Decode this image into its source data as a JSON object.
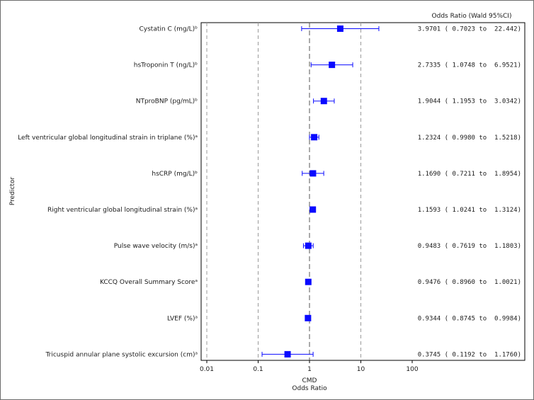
{
  "chart_data": {
    "type": "forest",
    "ylabel": "Predictor",
    "xlabel": "Odds Ratio",
    "x_subtitle": "CMD",
    "table_header": "Odds Ratio (Wald 95%CI)",
    "x_scale": "log",
    "xlim": [
      0.01,
      100
    ],
    "x_ticks": [
      0.01,
      0.1,
      1,
      10,
      100
    ],
    "x_tick_labels": [
      "0.01",
      "0.1",
      "1",
      "10",
      "100"
    ],
    "reference_lines": [
      0.01,
      0.1,
      1,
      10
    ],
    "rows": [
      {
        "label": "Cystatin C (mg/L)ᵇ",
        "or": 3.9701,
        "lo": 0.7023,
        "hi": 22.442,
        "ci_text": "3.9701 ( 0.7023 to  22.442)"
      },
      {
        "label": "hsTroponin T (ng/L)ᵇ",
        "or": 2.7335,
        "lo": 1.0748,
        "hi": 6.9521,
        "ci_text": "2.7335 ( 1.0748 to  6.9521)"
      },
      {
        "label": "NTproBNP (pg/mL)ᵇ",
        "or": 1.9044,
        "lo": 1.1953,
        "hi": 3.0342,
        "ci_text": "1.9044 ( 1.1953 to  3.0342)"
      },
      {
        "label": "Left ventricular global longitudinal strain in triplane (%)ᵃ",
        "or": 1.2324,
        "lo": 0.998,
        "hi": 1.5218,
        "ci_text": "1.2324 ( 0.9980 to  1.5218)"
      },
      {
        "label": "hsCRP (mg/L)ᵇ",
        "or": 1.169,
        "lo": 0.7211,
        "hi": 1.8954,
        "ci_text": "1.1690 ( 0.7211 to  1.8954)"
      },
      {
        "label": "Right ventricular global longitudinal strain (%)ᵃ",
        "or": 1.1593,
        "lo": 1.0241,
        "hi": 1.3124,
        "ci_text": "1.1593 ( 1.0241 to  1.3124)"
      },
      {
        "label": "Pulse wave velocity (m/s)ᵃ",
        "or": 0.9483,
        "lo": 0.7619,
        "hi": 1.1803,
        "ci_text": "0.9483 ( 0.7619 to  1.1803)"
      },
      {
        "label": "KCCQ Overall Summary Scoreᵃ",
        "or": 0.9476,
        "lo": 0.896,
        "hi": 1.0021,
        "ci_text": "0.9476 ( 0.8960 to  1.0021)"
      },
      {
        "label": "LVEF (%)ᵃ",
        "or": 0.9344,
        "lo": 0.8745,
        "hi": 0.9984,
        "ci_text": "0.9344 ( 0.8745 to  0.9984)"
      },
      {
        "label": "Tricuspid annular plane systolic excursion (cm)ᵃ",
        "or": 0.3745,
        "lo": 0.1192,
        "hi": 1.176,
        "ci_text": "0.3745 ( 0.1192 to  1.1760)"
      }
    ],
    "colors": {
      "marker": "#0a0aff",
      "reference_line": "#9a9a9a",
      "null_line": "#555555",
      "axis": "#000000"
    },
    "grid": false,
    "legend": "none"
  }
}
